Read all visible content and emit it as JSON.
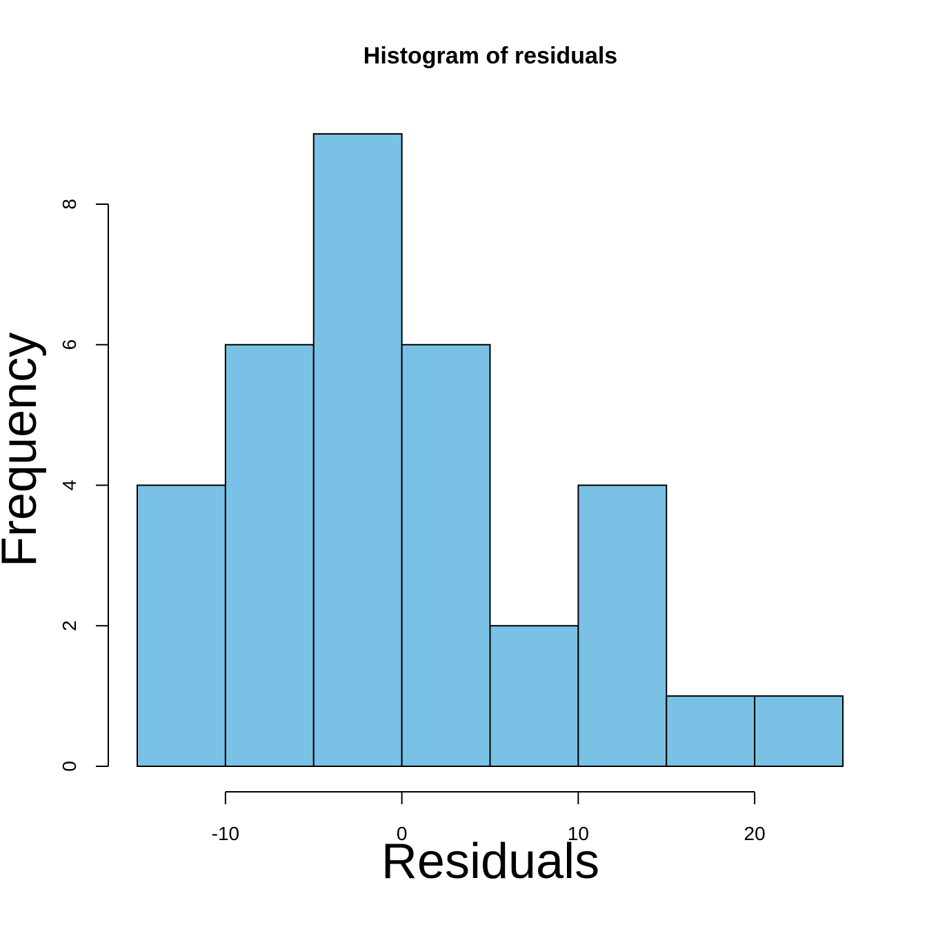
{
  "chart_data": {
    "type": "bar",
    "title": "Histogram of residuals",
    "xlabel": "Residuals",
    "ylabel": "Frequency",
    "bins": [
      {
        "start": -15,
        "end": -10,
        "count": 4
      },
      {
        "start": -10,
        "end": -5,
        "count": 6
      },
      {
        "start": -5,
        "end": 0,
        "count": 9
      },
      {
        "start": 0,
        "end": 5,
        "count": 6
      },
      {
        "start": 5,
        "end": 10,
        "count": 2
      },
      {
        "start": 10,
        "end": 15,
        "count": 4
      },
      {
        "start": 15,
        "end": 20,
        "count": 1
      },
      {
        "start": 20,
        "end": 25,
        "count": 1
      }
    ],
    "x_ticks": [
      -10,
      0,
      10,
      20
    ],
    "y_ticks": [
      0,
      2,
      4,
      6,
      8
    ],
    "xlim": [
      -15,
      25
    ],
    "ylim": [
      0,
      9
    ],
    "bar_color": "#7AC2E5",
    "edge_color": "#000000",
    "grid": false,
    "legend": "none"
  }
}
